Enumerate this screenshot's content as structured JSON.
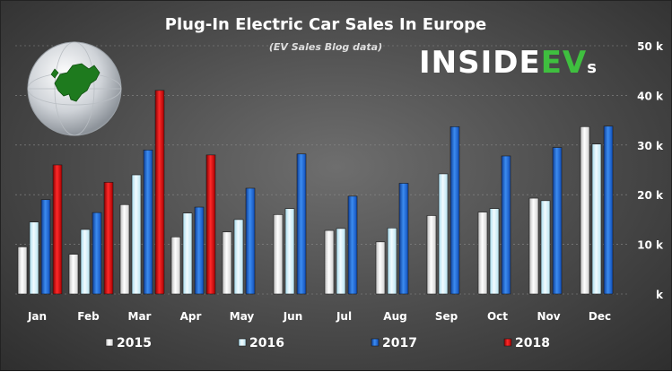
{
  "brand": {
    "main": "INSIDE",
    "accent": "EV",
    "suffix": "s",
    "main_color": "#ffffff",
    "accent_color": "#3fbf3f"
  },
  "chart_data": {
    "type": "bar",
    "title": "Plug-In Electric Car Sales In Europe",
    "subtitle": "(EV Sales Blog data)",
    "xlabel": "",
    "ylabel": "",
    "ylim": [
      0,
      50000
    ],
    "yticks": [
      {
        "value": 0,
        "label": "k"
      },
      {
        "value": 10000,
        "label": "10 k"
      },
      {
        "value": 20000,
        "label": "20 k"
      },
      {
        "value": 30000,
        "label": "30 k"
      },
      {
        "value": 40000,
        "label": "40 k"
      },
      {
        "value": 50000,
        "label": "50 k"
      }
    ],
    "y_axis_side": "right",
    "grid": true,
    "legend_position": "bottom",
    "categories": [
      "Jan",
      "Feb",
      "Mar",
      "Apr",
      "May",
      "Jun",
      "Jul",
      "Aug",
      "Sep",
      "Oct",
      "Nov",
      "Dec"
    ],
    "series": [
      {
        "name": "2015",
        "color": "#ffffff",
        "values": [
          9500,
          8000,
          18000,
          11500,
          12500,
          16000,
          12800,
          10500,
          15800,
          16500,
          19300,
          33700
        ]
      },
      {
        "name": "2016",
        "color": "#d9f3fb",
        "values": [
          14500,
          13000,
          24000,
          16300,
          15000,
          17200,
          13200,
          13300,
          24200,
          17200,
          18800,
          30200
        ]
      },
      {
        "name": "2017",
        "color": "#1f66d6",
        "values": [
          19000,
          16400,
          29000,
          17500,
          21300,
          28200,
          19700,
          22300,
          33700,
          27800,
          29500,
          33800
        ]
      },
      {
        "name": "2018",
        "color": "#e01414",
        "values": [
          26000,
          22500,
          41000,
          28000,
          null,
          null,
          null,
          null,
          null,
          null,
          null,
          null
        ]
      }
    ]
  }
}
